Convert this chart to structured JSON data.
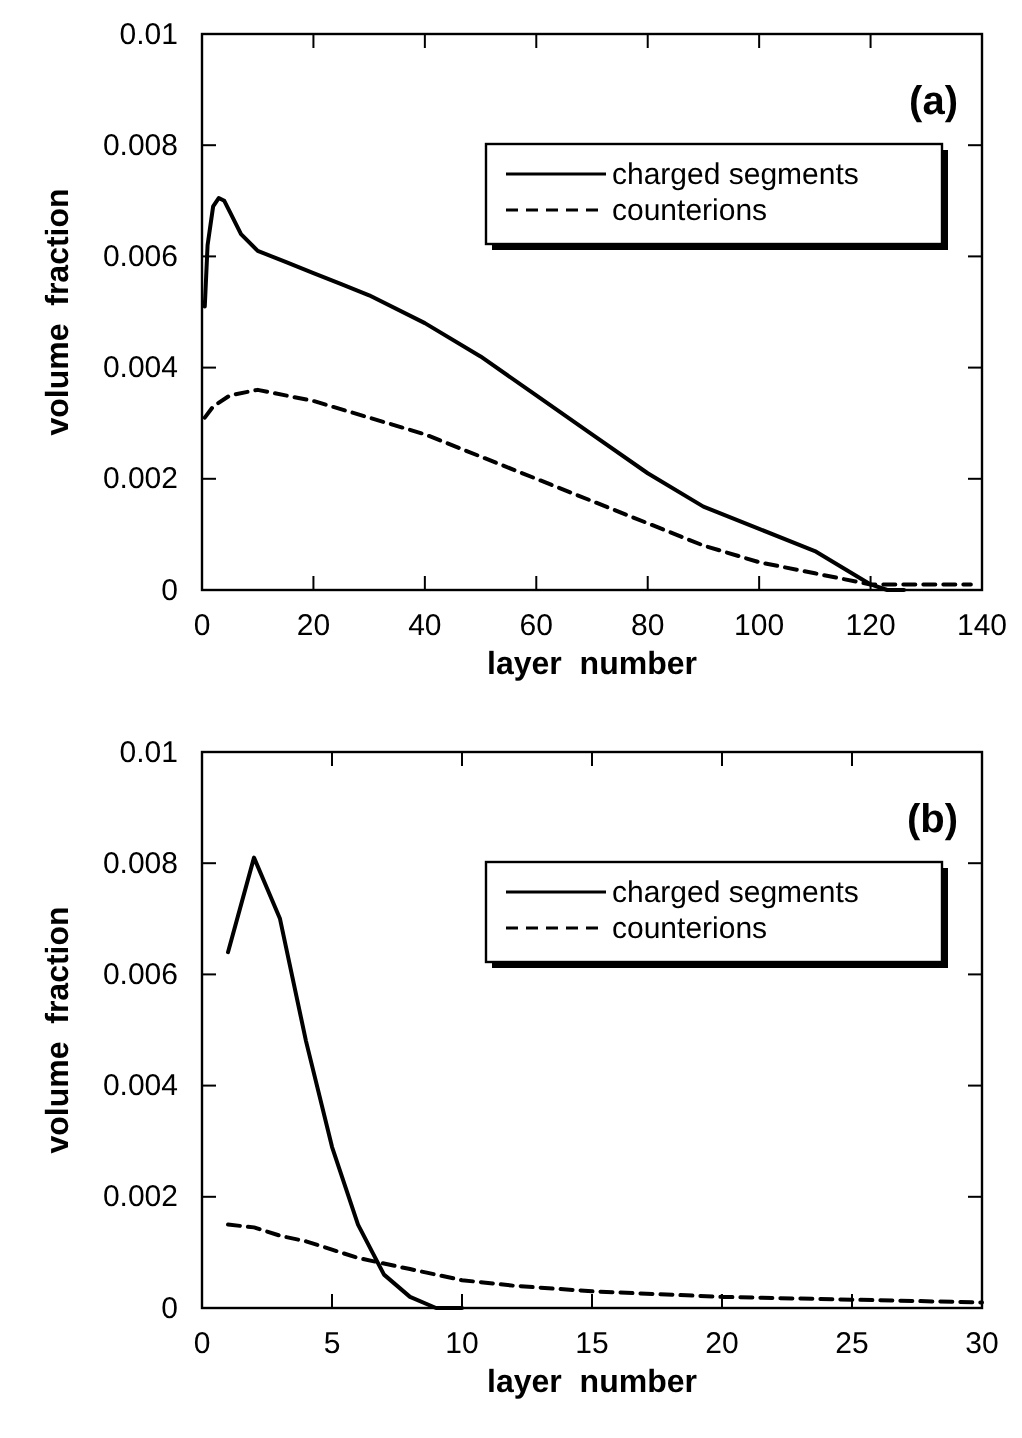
{
  "chart_data": [
    {
      "type": "line",
      "xlabel": "layer  number",
      "ylabel": "volume  fraction",
      "annotations": [
        "(a)"
      ],
      "legend": "top right",
      "xlim": [
        0,
        140
      ],
      "ylim": [
        0,
        0.01
      ],
      "xticks": [
        0,
        20,
        40,
        60,
        80,
        100,
        120,
        140
      ],
      "yticks": [
        0,
        0.002,
        0.004,
        0.006,
        0.008,
        0.01
      ],
      "series": [
        {
          "name": "charged segments",
          "color": "#000000",
          "line_style": "solid",
          "x": [
            0.5,
            1,
            2,
            3,
            4,
            5,
            7,
            10,
            15,
            20,
            25,
            30,
            40,
            50,
            60,
            70,
            80,
            90,
            100,
            110,
            115,
            120,
            123,
            126
          ],
          "values": [
            0.0051,
            0.0062,
            0.0069,
            0.00705,
            0.007,
            0.0068,
            0.0064,
            0.0061,
            0.0059,
            0.0057,
            0.0055,
            0.0053,
            0.0048,
            0.0042,
            0.0035,
            0.0028,
            0.0021,
            0.0015,
            0.0011,
            0.0007,
            0.0004,
            0.0001,
            0,
            0
          ]
        },
        {
          "name": "counterions",
          "color": "#000000",
          "line_style": "dashed",
          "x": [
            0.5,
            2,
            5,
            10,
            20,
            30,
            40,
            50,
            60,
            70,
            80,
            90,
            100,
            110,
            120,
            130,
            138
          ],
          "values": [
            0.0031,
            0.0033,
            0.0035,
            0.0036,
            0.0034,
            0.0031,
            0.0028,
            0.0024,
            0.002,
            0.0016,
            0.0012,
            0.0008,
            0.0005,
            0.0003,
            0.0001,
            0.0001,
            0.0001
          ]
        }
      ]
    },
    {
      "type": "line",
      "xlabel": "layer  number",
      "ylabel": "volume  fraction",
      "annotations": [
        "(b)"
      ],
      "legend": "top right",
      "xlim": [
        0,
        30
      ],
      "ylim": [
        0,
        0.01
      ],
      "xticks": [
        0,
        5,
        10,
        15,
        20,
        25,
        30
      ],
      "yticks": [
        0,
        0.002,
        0.004,
        0.006,
        0.008,
        0.01
      ],
      "series": [
        {
          "name": "charged segments",
          "color": "#000000",
          "line_style": "solid",
          "x": [
            1,
            2,
            3,
            4,
            5,
            6,
            7,
            8,
            9,
            10
          ],
          "values": [
            0.0064,
            0.0081,
            0.007,
            0.0048,
            0.0029,
            0.0015,
            0.0006,
            0.0002,
            0,
            0
          ]
        },
        {
          "name": "counterions",
          "color": "#000000",
          "line_style": "dashed",
          "x": [
            1,
            2,
            3,
            4,
            5,
            6,
            7,
            8,
            9,
            10,
            12,
            15,
            20,
            25,
            30
          ],
          "values": [
            0.0015,
            0.00145,
            0.0013,
            0.0012,
            0.00105,
            0.0009,
            0.0008,
            0.0007,
            0.0006,
            0.0005,
            0.0004,
            0.0003,
            0.0002,
            0.00015,
            0.0001
          ]
        }
      ]
    }
  ]
}
